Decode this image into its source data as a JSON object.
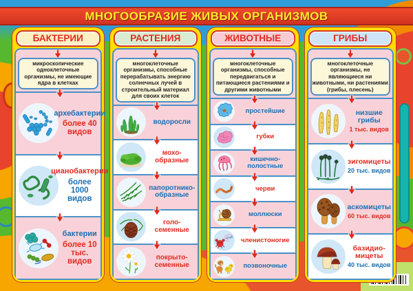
{
  "title": "МНОГООБРАЗИЕ ЖИВЫХ ОРГАНИЗМОВ",
  "colors": {
    "title_band": "#e23c28",
    "title_text": "#ffe92c",
    "frame_yellow": "#ffdf00",
    "border_blue": "#4a90c8",
    "row_pink": "#f8d2d8",
    "accent_red": "#e02b20",
    "accent_blue": "#1a6fb5"
  },
  "columns": [
    {
      "key": "bacteria",
      "header": "БАКТЕРИИ",
      "header_bg": "#fdf0c4",
      "description": "микроскопические одноклеточные организмы, не имеющие ядра в клетках",
      "items": [
        {
          "label": "архебактерии",
          "label_color": "blue",
          "count": "более 40 видов",
          "count_color": "red",
          "icon": "archaebacteria-icon"
        },
        {
          "label": "цианобактерии",
          "label_color": "red",
          "count": "более 1000 видов",
          "count_color": "blue",
          "icon": "cyanobacteria-icon"
        },
        {
          "label": "бактерии",
          "label_color": "blue",
          "count": "более 10 тыс. видов",
          "count_color": "red",
          "icon": "bacteria-icon"
        }
      ]
    },
    {
      "key": "plants",
      "header": "РАСТЕНИЯ",
      "header_bg": "#d9ecd2",
      "description": "многоклеточные организмы, способные перерабатывать энергию солнечных лучей в строительный материал для своих клеток",
      "items": [
        {
          "label": "водоросли",
          "label_color": "blue",
          "icon": "algae-icon"
        },
        {
          "label": "мохо-образные",
          "label_color": "red",
          "icon": "moss-icon"
        },
        {
          "label": "папоротнико-образные",
          "label_color": "blue",
          "icon": "fern-icon"
        },
        {
          "label": "голо-семенные",
          "label_color": "red",
          "icon": "conifer-cone-icon"
        },
        {
          "label": "покрыто-семенные",
          "label_color": "red",
          "icon": "daisy-icon"
        }
      ]
    },
    {
      "key": "animals",
      "header": "ЖИВОТНЫЕ",
      "header_bg": "#f8ccd2",
      "description": "многоклеточные организмы, способные передвигаться и питающиеся растениями и другими животными",
      "items": [
        {
          "label": "простейшие",
          "label_color": "blue",
          "icon": "protozoa-icon"
        },
        {
          "label": "губки",
          "label_color": "red",
          "icon": "sponge-icon"
        },
        {
          "label": "кишечно-полостные",
          "label_color": "blue",
          "icon": "jellyfish-icon"
        },
        {
          "label": "черви",
          "label_color": "red",
          "icon": "worm-icon"
        },
        {
          "label": "моллюски",
          "label_color": "blue",
          "icon": "snail-icon"
        },
        {
          "label": "членистоногие",
          "label_color": "red",
          "icon": "arthropods-icon"
        },
        {
          "label": "позвоночные",
          "label_color": "blue",
          "icon": "vertebrates-icon"
        }
      ]
    },
    {
      "key": "fungi",
      "header": "ГРИБЫ",
      "header_bg": "#cfe4f6",
      "description": "многоклеточные организмы, не являющиеся ни животными, ни растениями (грибы, плесень)",
      "items": [
        {
          "label": "низшие грибы",
          "label_color": "blue",
          "count": "1 тыс. видов",
          "count_color": "red",
          "icon": "lower-fungi-icon"
        },
        {
          "label": "зигомицеты",
          "label_color": "red",
          "count": "20 тыс. видов",
          "count_color": "blue",
          "icon": "pin-mold-icon"
        },
        {
          "label": "аскомицеты",
          "label_color": "blue",
          "count": "60 тыс. видов",
          "count_color": "red",
          "icon": "morel-icon"
        },
        {
          "label": "базидио-мицеты",
          "label_color": "red",
          "count": "40 тыс. видов",
          "count_color": "blue",
          "icon": "mushroom-icon"
        }
      ]
    }
  ]
}
